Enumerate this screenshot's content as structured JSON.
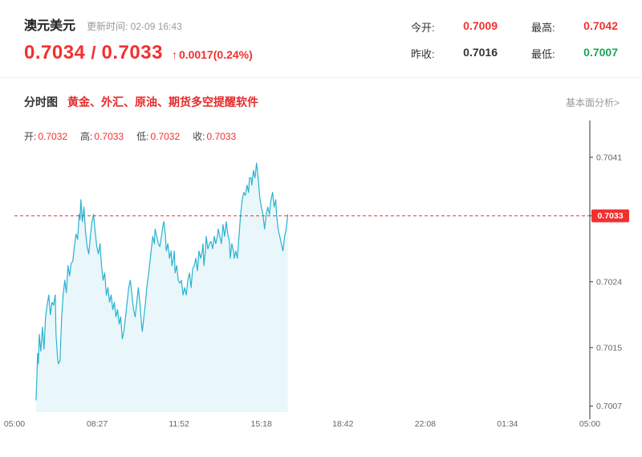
{
  "header": {
    "pair_name": "澳元美元",
    "update_time": "更新时间: 02-09 16:43",
    "price_main": "0.7034",
    "price_separator": "/",
    "price_secondary": "0.7033",
    "arrow": "↑",
    "change_text": "0.0017(0.24%)",
    "stats": [
      {
        "label": "今开:",
        "value": "0.7009",
        "color": "#f23030"
      },
      {
        "label": "最高:",
        "value": "0.7042",
        "color": "#f23030"
      },
      {
        "label": "昨收:",
        "value": "0.7016",
        "color": "#333333"
      },
      {
        "label": "最低:",
        "value": "0.7007",
        "color": "#1fa356"
      }
    ]
  },
  "section": {
    "title": "分时图",
    "promo": "黄金、外汇、原油、期货多空提醒软件",
    "analysis_link": "基本面分析>"
  },
  "ohlc": {
    "open_label": "开:",
    "open": "0.7032",
    "high_label": "高:",
    "high": "0.7033",
    "low_label": "低:",
    "low": "0.7032",
    "close_label": "收:",
    "close": "0.7033"
  },
  "colors": {
    "accent_red": "#f23030",
    "green": "#1fa356",
    "chart_line": "#29b2d1",
    "axis_text": "#666666"
  },
  "chart_data": {
    "type": "line",
    "title": "澳元美元 分时图",
    "xlabel": "",
    "ylabel": "",
    "grid": false,
    "legend": false,
    "x_range_minutes": [
      0,
      1440
    ],
    "y_range": [
      0.70062,
      0.70457
    ],
    "x_ticks": {
      "minutes": [
        0,
        207,
        412,
        618,
        822,
        1028,
        1234,
        1440
      ],
      "labels": [
        "05:00",
        "08:27",
        "11:52",
        "15:18",
        "18:42",
        "22:08",
        "01:34",
        "05:00"
      ]
    },
    "y_ticks": [
      0.7007,
      0.7015,
      0.7024,
      0.7033,
      0.7041
    ],
    "current_price": 0.7033,
    "current_price_label": "0.7033",
    "line_color": "#29b2d1",
    "fill_color": "rgba(41,178,209,0.10)",
    "dash_color": "#f23030",
    "tag_bg": "#f23030",
    "points": [
      [
        54,
        0.70078
      ],
      [
        56,
        0.70108
      ],
      [
        58,
        0.70142
      ],
      [
        60,
        0.70128
      ],
      [
        62,
        0.70168
      ],
      [
        66,
        0.70145
      ],
      [
        70,
        0.70178
      ],
      [
        74,
        0.70148
      ],
      [
        78,
        0.70192
      ],
      [
        82,
        0.70208
      ],
      [
        86,
        0.70222
      ],
      [
        90,
        0.70195
      ],
      [
        94,
        0.70212
      ],
      [
        98,
        0.70208
      ],
      [
        102,
        0.70222
      ],
      [
        104,
        0.70168
      ],
      [
        108,
        0.70135
      ],
      [
        110,
        0.70128
      ],
      [
        114,
        0.70132
      ],
      [
        118,
        0.70192
      ],
      [
        122,
        0.70222
      ],
      [
        126,
        0.70242
      ],
      [
        130,
        0.70225
      ],
      [
        134,
        0.70262
      ],
      [
        138,
        0.70248
      ],
      [
        142,
        0.70265
      ],
      [
        146,
        0.70268
      ],
      [
        150,
        0.70288
      ],
      [
        154,
        0.70305
      ],
      [
        158,
        0.70298
      ],
      [
        162,
        0.70332
      ],
      [
        164,
        0.70325
      ],
      [
        166,
        0.70352
      ],
      [
        170,
        0.70322
      ],
      [
        174,
        0.70342
      ],
      [
        178,
        0.70308
      ],
      [
        182,
        0.70288
      ],
      [
        186,
        0.70278
      ],
      [
        190,
        0.70302
      ],
      [
        194,
        0.70322
      ],
      [
        198,
        0.70332
      ],
      [
        202,
        0.70308
      ],
      [
        206,
        0.70288
      ],
      [
        210,
        0.70278
      ],
      [
        214,
        0.70292
      ],
      [
        218,
        0.70262
      ],
      [
        222,
        0.70242
      ],
      [
        226,
        0.70252
      ],
      [
        230,
        0.70222
      ],
      [
        234,
        0.70232
      ],
      [
        238,
        0.70212
      ],
      [
        242,
        0.70222
      ],
      [
        246,
        0.70202
      ],
      [
        250,
        0.70212
      ],
      [
        254,
        0.70192
      ],
      [
        258,
        0.70202
      ],
      [
        262,
        0.70182
      ],
      [
        266,
        0.70192
      ],
      [
        270,
        0.70162
      ],
      [
        274,
        0.70172
      ],
      [
        278,
        0.70192
      ],
      [
        282,
        0.70212
      ],
      [
        286,
        0.70232
      ],
      [
        290,
        0.70242
      ],
      [
        294,
        0.70222
      ],
      [
        298,
        0.70202
      ],
      [
        302,
        0.70192
      ],
      [
        306,
        0.70212
      ],
      [
        310,
        0.70232
      ],
      [
        314,
        0.70212
      ],
      [
        318,
        0.70182
      ],
      [
        320,
        0.70172
      ],
      [
        324,
        0.70192
      ],
      [
        328,
        0.70212
      ],
      [
        332,
        0.70236
      ],
      [
        336,
        0.70252
      ],
      [
        340,
        0.70272
      ],
      [
        344,
        0.70292
      ],
      [
        346,
        0.70302
      ],
      [
        350,
        0.70292
      ],
      [
        352,
        0.70312
      ],
      [
        356,
        0.70302
      ],
      [
        360,
        0.70292
      ],
      [
        364,
        0.70288
      ],
      [
        368,
        0.70302
      ],
      [
        372,
        0.70318
      ],
      [
        374,
        0.70322
      ],
      [
        378,
        0.70302
      ],
      [
        380,
        0.70282
      ],
      [
        384,
        0.70292
      ],
      [
        388,
        0.70272
      ],
      [
        392,
        0.70282
      ],
      [
        394,
        0.70262
      ],
      [
        398,
        0.70272
      ],
      [
        400,
        0.70282
      ],
      [
        402,
        0.70252
      ],
      [
        406,
        0.70262
      ],
      [
        410,
        0.70242
      ],
      [
        414,
        0.70238
      ],
      [
        418,
        0.70242
      ],
      [
        422,
        0.70222
      ],
      [
        426,
        0.70232
      ],
      [
        430,
        0.70222
      ],
      [
        434,
        0.70242
      ],
      [
        438,
        0.70252
      ],
      [
        442,
        0.70232
      ],
      [
        446,
        0.70258
      ],
      [
        450,
        0.70262
      ],
      [
        454,
        0.70272
      ],
      [
        458,
        0.70255
      ],
      [
        462,
        0.70282
      ],
      [
        466,
        0.70272
      ],
      [
        470,
        0.70282
      ],
      [
        472,
        0.70292
      ],
      [
        474,
        0.70262
      ],
      [
        478,
        0.70282
      ],
      [
        480,
        0.70302
      ],
      [
        484,
        0.70285
      ],
      [
        488,
        0.70292
      ],
      [
        492,
        0.70295
      ],
      [
        496,
        0.70285
      ],
      [
        500,
        0.70302
      ],
      [
        504,
        0.70292
      ],
      [
        508,
        0.70302
      ],
      [
        510,
        0.70312
      ],
      [
        514,
        0.70302
      ],
      [
        518,
        0.70292
      ],
      [
        522,
        0.70318
      ],
      [
        526,
        0.70302
      ],
      [
        530,
        0.70322
      ],
      [
        534,
        0.70305
      ],
      [
        538,
        0.70295
      ],
      [
        540,
        0.70272
      ],
      [
        544,
        0.70292
      ],
      [
        548,
        0.70282
      ],
      [
        550,
        0.70272
      ],
      [
        554,
        0.70282
      ],
      [
        558,
        0.70272
      ],
      [
        562,
        0.70302
      ],
      [
        566,
        0.70332
      ],
      [
        570,
        0.70352
      ],
      [
        574,
        0.70362
      ],
      [
        578,
        0.70358
      ],
      [
        582,
        0.70372
      ],
      [
        586,
        0.70362
      ],
      [
        588,
        0.70382
      ],
      [
        592,
        0.70382
      ],
      [
        594,
        0.70372
      ],
      [
        598,
        0.70392
      ],
      [
        602,
        0.70382
      ],
      [
        606,
        0.70402
      ],
      [
        610,
        0.70382
      ],
      [
        614,
        0.70355
      ],
      [
        618,
        0.70342
      ],
      [
        622,
        0.70332
      ],
      [
        626,
        0.70312
      ],
      [
        630,
        0.70332
      ],
      [
        634,
        0.70342
      ],
      [
        638,
        0.70332
      ],
      [
        642,
        0.70352
      ],
      [
        646,
        0.70362
      ],
      [
        650,
        0.70342
      ],
      [
        654,
        0.70352
      ],
      [
        656,
        0.70332
      ],
      [
        660,
        0.70312
      ],
      [
        664,
        0.70302
      ],
      [
        668,
        0.70292
      ],
      [
        672,
        0.70282
      ],
      [
        676,
        0.70302
      ],
      [
        680,
        0.70312
      ],
      [
        684,
        0.70332
      ]
    ]
  }
}
